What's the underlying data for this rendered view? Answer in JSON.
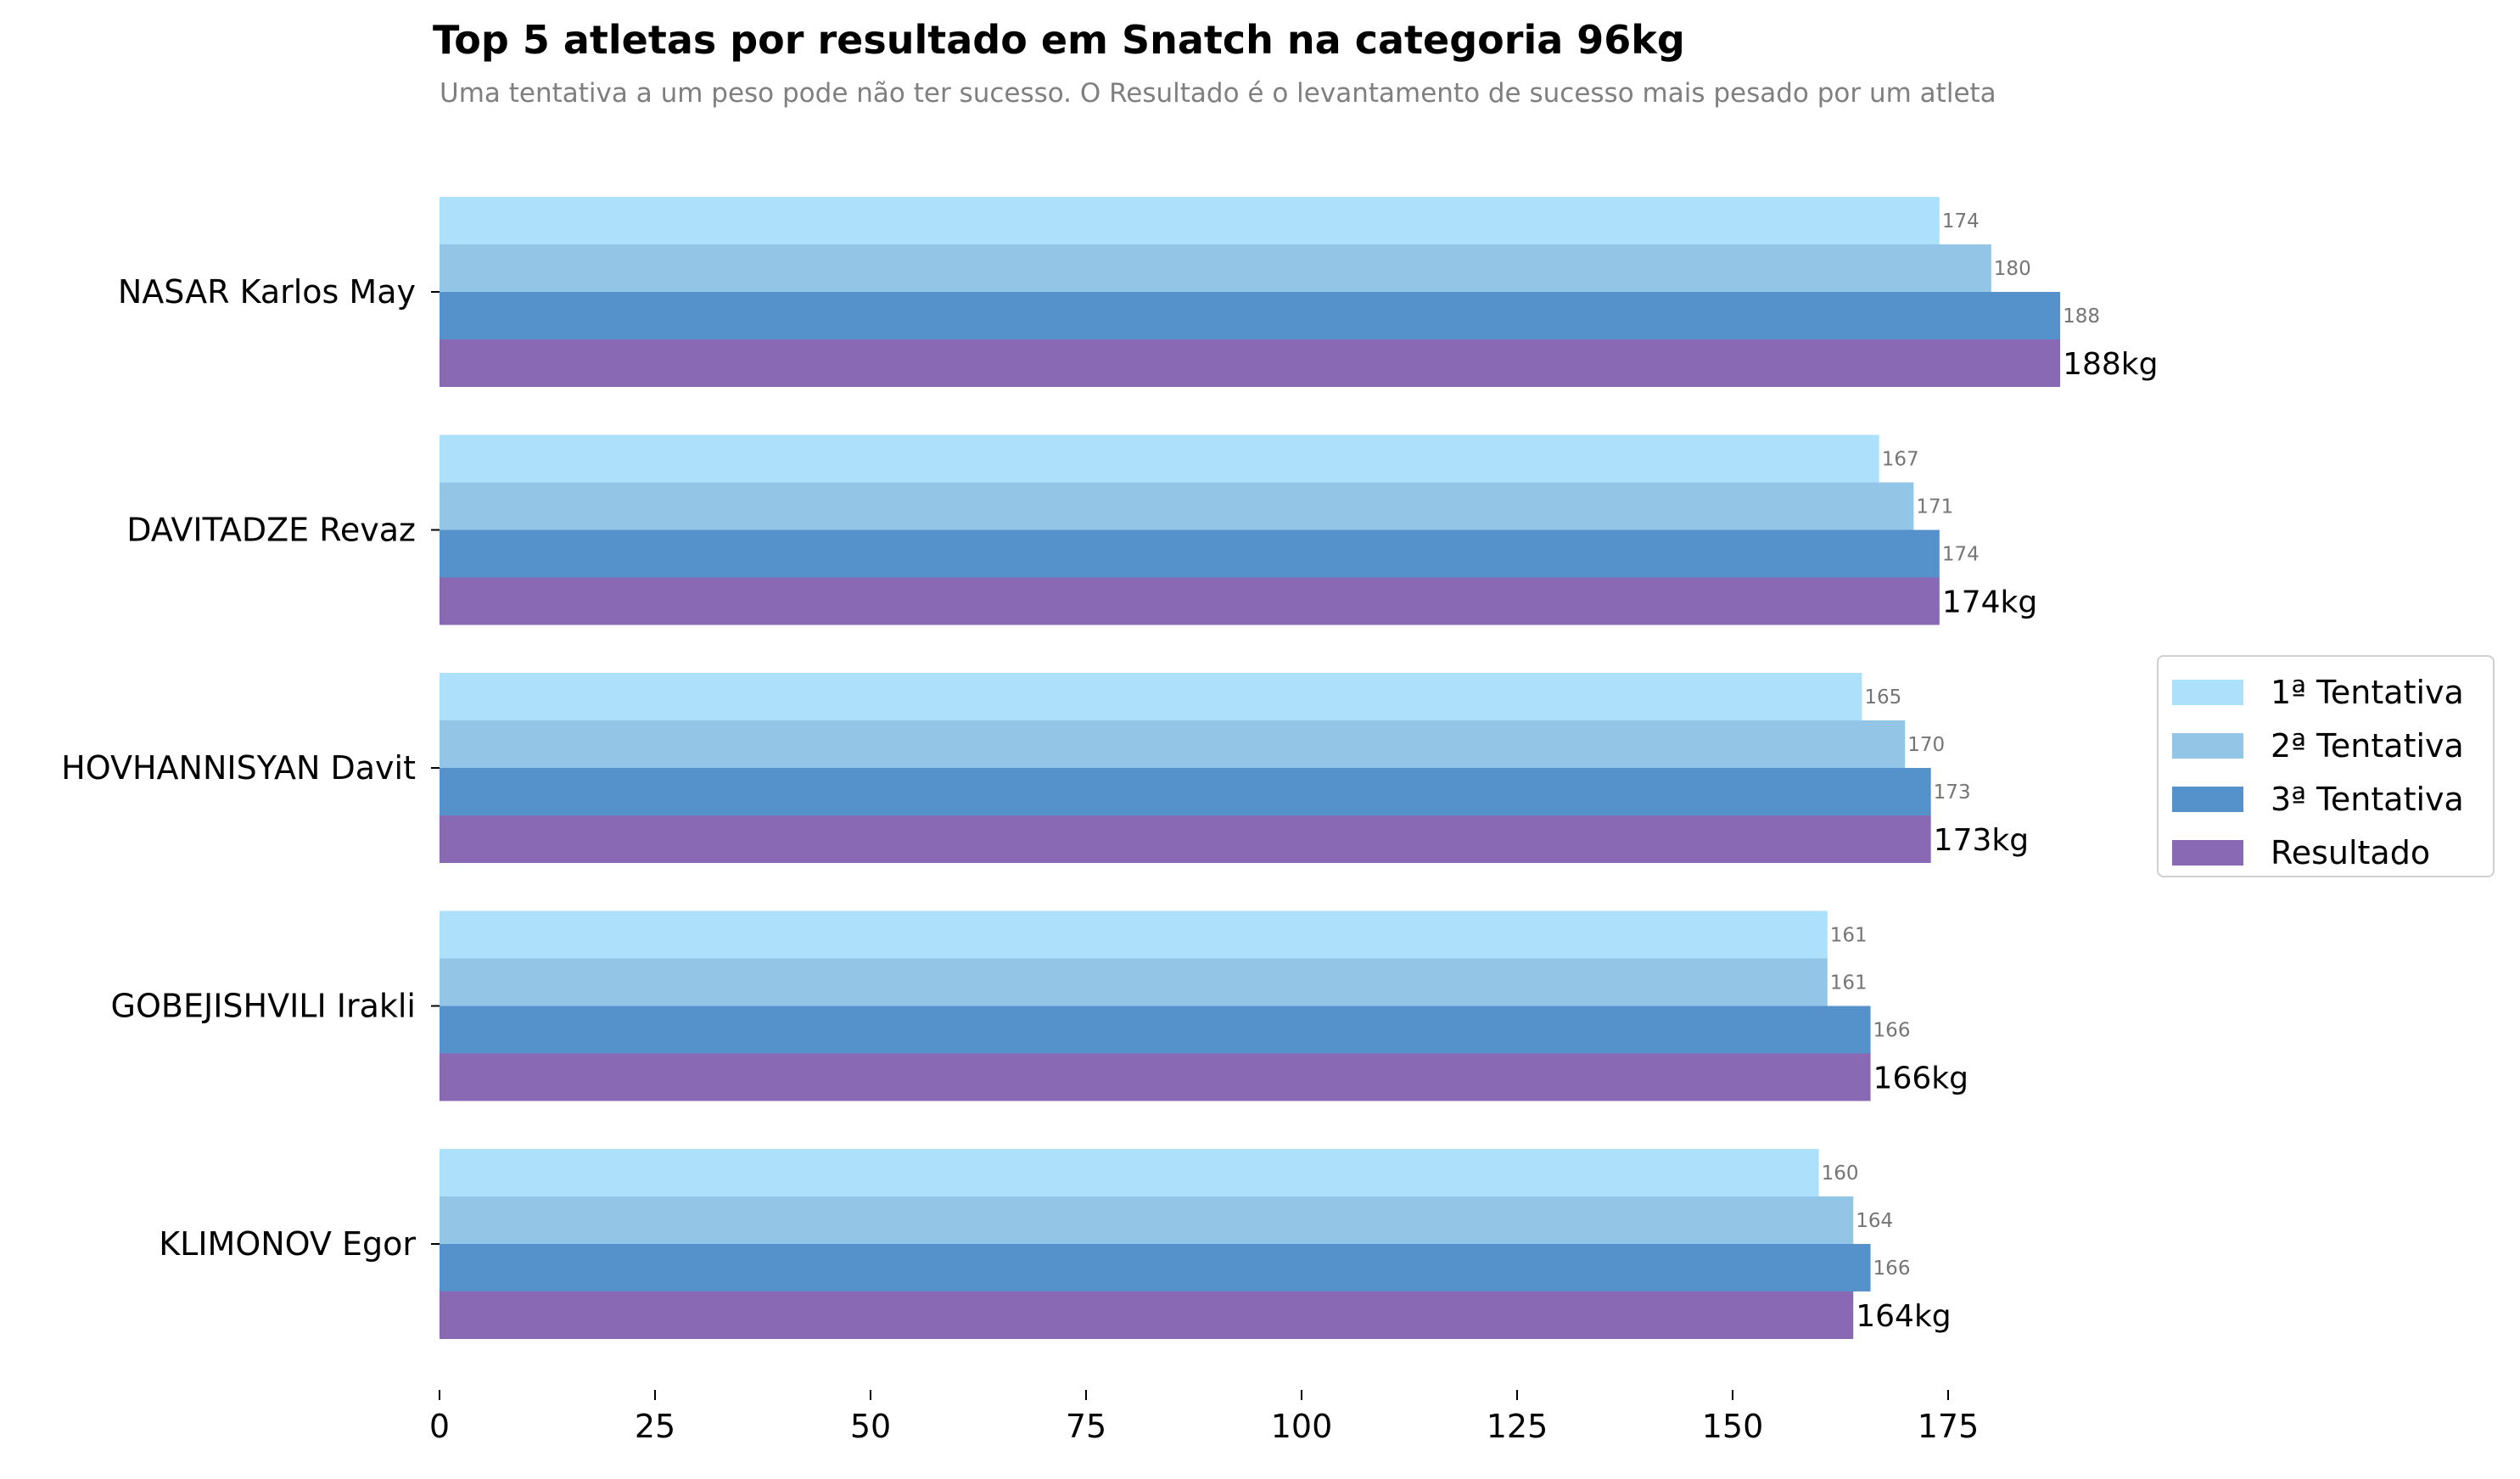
{
  "chart_data": {
    "type": "bar",
    "orientation": "horizontal",
    "title": "Top 5 atletas por resultado em Snatch na categoria 96kg",
    "subtitle": "Uma tentativa a um peso pode não ter sucesso. O Resultado é o levantamento de sucesso mais pesado por um atleta",
    "xlabel": "",
    "ylabel": "",
    "categories": [
      "NASAR Karlos May",
      "DAVITADZE Revaz",
      "HOVHANNISYAN Davit",
      "GOBEJISHVILI Irakli",
      "KLIMONOV Egor"
    ],
    "series": [
      {
        "name": "1ª Tentativa",
        "color": "#ade1fb",
        "values": [
          174,
          167,
          165,
          161,
          160
        ],
        "labels": [
          "174",
          "167",
          "165",
          "161",
          "160"
        ]
      },
      {
        "name": "2ª Tentativa",
        "color": "#93c5e7",
        "values": [
          180,
          171,
          170,
          161,
          164
        ],
        "labels": [
          "180",
          "171",
          "170",
          "161",
          "164"
        ]
      },
      {
        "name": "3ª Tentativa",
        "color": "#5591cb",
        "values": [
          188,
          174,
          173,
          166,
          166
        ],
        "labels": [
          "188",
          "174",
          "173",
          "166",
          "166"
        ]
      },
      {
        "name": "Resultado",
        "color": "#8968b4",
        "values": [
          188,
          174,
          173,
          166,
          164
        ],
        "labels": [
          "188kg",
          "174kg",
          "173kg",
          "166kg",
          "164kg"
        ]
      }
    ],
    "x_ticks": [
      "0",
      "25",
      "50",
      "75",
      "100",
      "125",
      "150",
      "175"
    ],
    "xlim": [
      0,
      188
    ],
    "grid": false,
    "legend_position": "right"
  }
}
